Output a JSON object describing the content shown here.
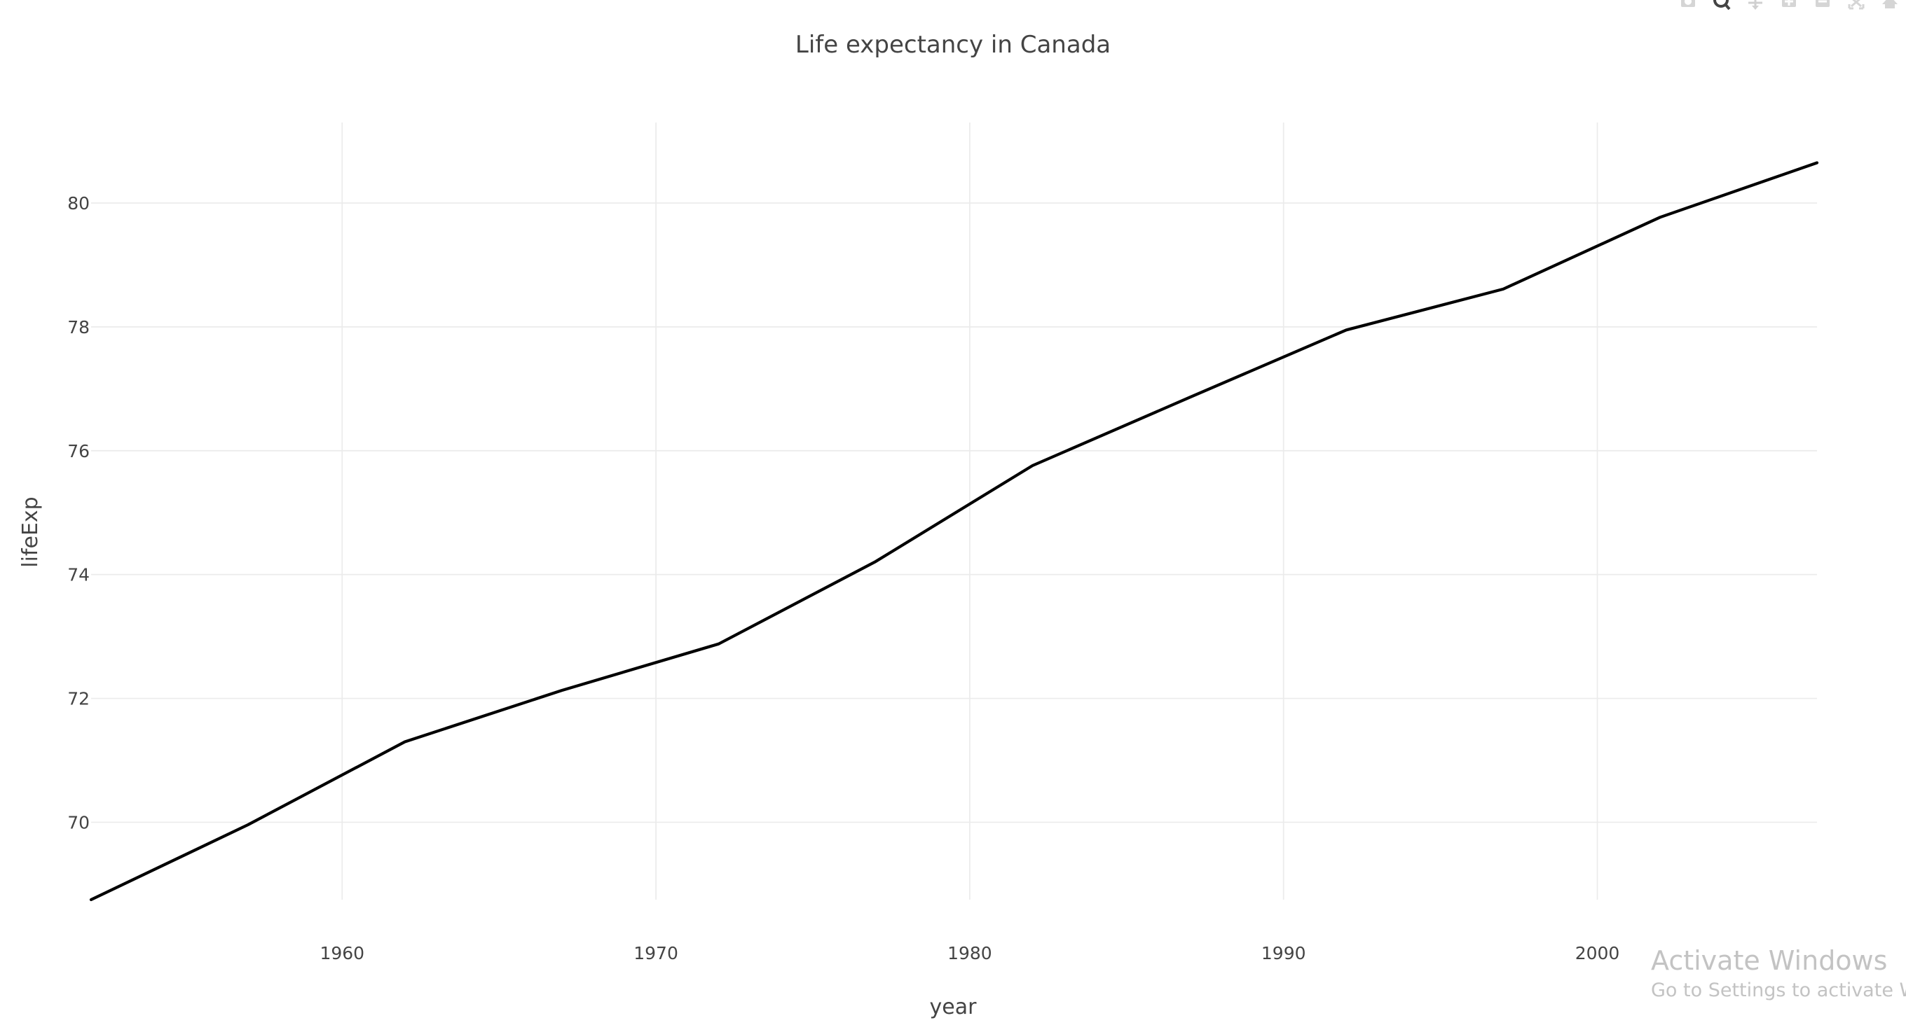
{
  "chart_data": {
    "type": "line",
    "title": "Life expectancy in Canada",
    "xlabel": "year",
    "ylabel": "lifeExp",
    "x": [
      1952,
      1957,
      1962,
      1967,
      1972,
      1977,
      1982,
      1987,
      1992,
      1997,
      2002,
      2007
    ],
    "series": [
      {
        "name": "",
        "values": [
          68.75,
          69.96,
          71.3,
          72.13,
          72.88,
          74.21,
          75.76,
          76.86,
          77.95,
          78.61,
          79.77,
          80.65
        ],
        "color": "#000000"
      }
    ],
    "xlim": [
      1952,
      2007
    ],
    "ylim": [
      68.75,
      81.3
    ],
    "xticks": [
      1960,
      1970,
      1980,
      1990,
      2000
    ],
    "yticks": [
      70,
      72,
      74,
      76,
      78,
      80
    ],
    "grid": true,
    "legend": "none"
  },
  "modebar": {
    "icons": [
      "camera-icon",
      "zoom-icon",
      "pan-icon",
      "zoom-in-icon",
      "zoom-out-icon",
      "autoscale-icon",
      "home-icon"
    ]
  },
  "watermark": {
    "title": "Activate Windows",
    "subtitle": "Go to Settings to activate Wi"
  }
}
